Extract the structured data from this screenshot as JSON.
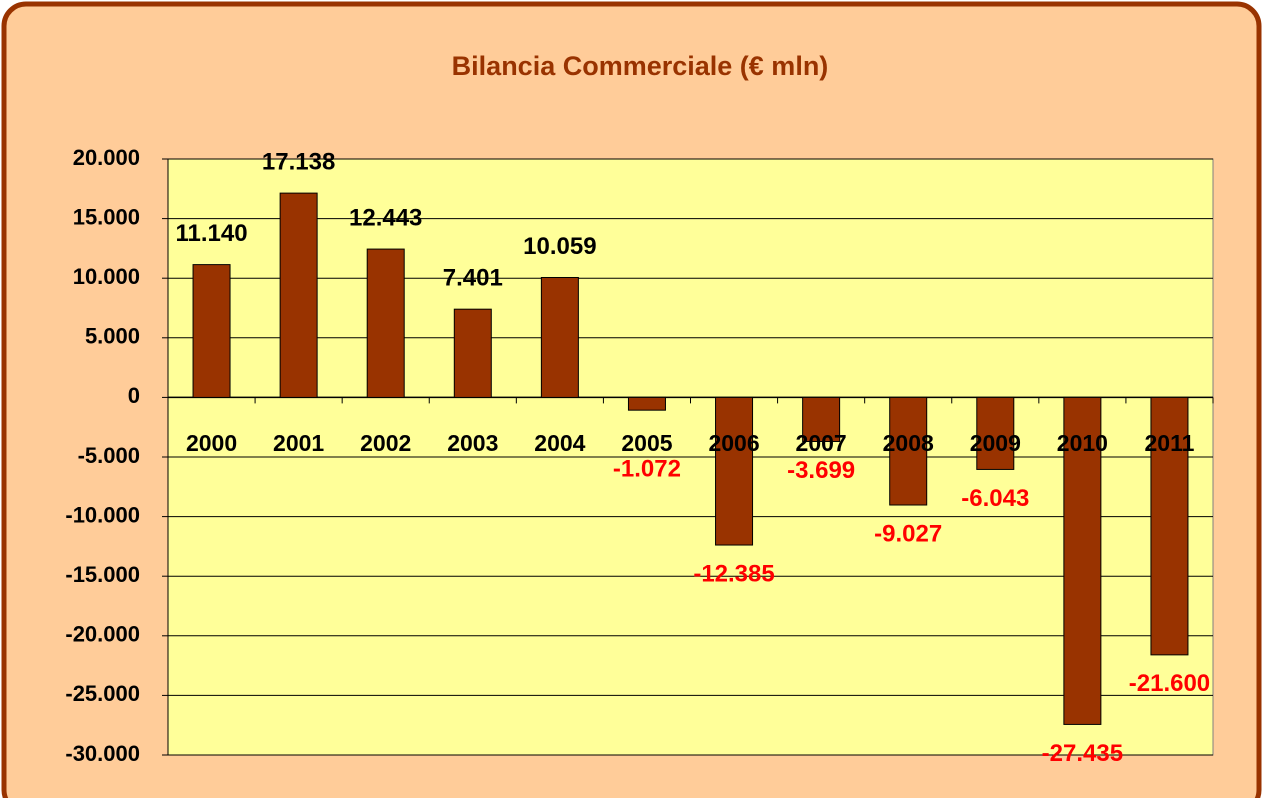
{
  "chart_data": {
    "type": "bar",
    "title": "Bilancia Commerciale (€ mln)",
    "categories": [
      "2000",
      "2001",
      "2002",
      "2003",
      "2004",
      "2005",
      "2006",
      "2007",
      "2008",
      "2009",
      "2010",
      "2011"
    ],
    "values": [
      11140,
      17138,
      12443,
      7401,
      10059,
      -1072,
      -12385,
      -3699,
      -9027,
      -6043,
      -27435,
      -21600
    ],
    "value_labels": [
      "11.140",
      "17.138",
      "12.443",
      "7.401",
      "10.059",
      "-1.072",
      "-12.385",
      "-3.699",
      "-9.027",
      "-6.043",
      "-27.435",
      "-21.600"
    ],
    "color": "#993300",
    "positive_label_color": "#000000",
    "negative_label_color": "#ff0000",
    "ylim": [
      -30000,
      20000
    ],
    "yticks": [
      {
        "value": -30000,
        "label": "-30.000"
      },
      {
        "value": -25000,
        "label": "-25.000"
      },
      {
        "value": -20000,
        "label": "-20.000"
      },
      {
        "value": -15000,
        "label": "-15.000"
      },
      {
        "value": -10000,
        "label": "-10.000"
      },
      {
        "value": -5000,
        "label": "-5.000"
      },
      0,
      {
        "value": 5000,
        "label": "5.000"
      },
      {
        "value": 10000,
        "label": "10.000"
      },
      {
        "value": 15000,
        "label": "15.000"
      },
      {
        "value": 20000,
        "label": "20.000"
      }
    ],
    "grid": true
  }
}
